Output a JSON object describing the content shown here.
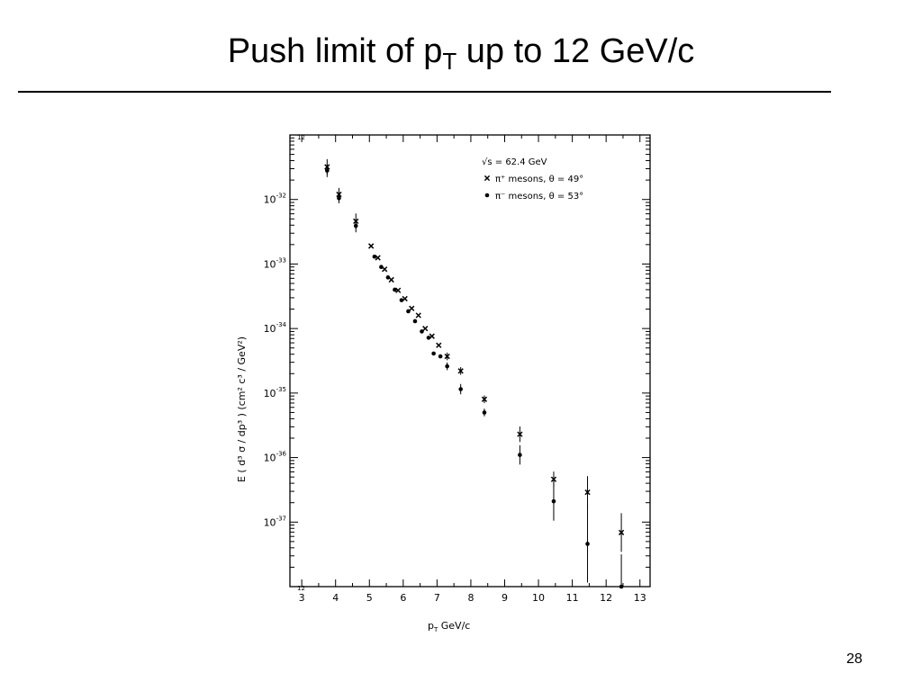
{
  "slide": {
    "title_main": "Push limit of p",
    "title_sub": "T",
    "title_rest": " up to 12 GeV/c",
    "page_number": "28"
  },
  "chart_data": {
    "type": "scatter",
    "xlabel_main": "p",
    "xlabel_sub": "T",
    "xlabel_rest": "  GeV/c",
    "ylabel": "E ( d³ σ / dp³ ) (cm² c³ / GeV²)",
    "xlim": [
      2.65,
      13.3
    ],
    "y_log_scale": true,
    "ylim": [
      1e-38,
      1e-31
    ],
    "x_ticks": [
      3,
      4,
      5,
      6,
      7,
      8,
      9,
      10,
      11,
      12,
      13
    ],
    "y_ticks": [
      {
        "value": 1e-32,
        "mantissa": "10",
        "exponent": "-32"
      },
      {
        "value": 1e-33,
        "mantissa": "10",
        "exponent": "-33"
      },
      {
        "value": 1e-34,
        "mantissa": "10",
        "exponent": "-34"
      },
      {
        "value": 1e-35,
        "mantissa": "10",
        "exponent": "-35"
      },
      {
        "value": 1e-36,
        "mantissa": "10",
        "exponent": "-36"
      },
      {
        "value": 1e-37,
        "mantissa": "10",
        "exponent": "-37"
      }
    ],
    "corner_label_top": "12",
    "corner_label_bottom": "12",
    "legend": {
      "position": "top-right",
      "sqrt_s_label": "√s = 62.4 GeV",
      "entries": [
        {
          "symbol": "cross",
          "label": "π⁺ mesons, θ = 49°"
        },
        {
          "symbol": "dot",
          "label": "π⁻ mesons, θ = 53°"
        }
      ]
    },
    "series": [
      {
        "name": "π⁺ mesons, θ = 49°",
        "marker": "cross",
        "points": [
          {
            "x": 3.75,
            "y": 3.2e-32,
            "err": 0.12
          },
          {
            "x": 4.1,
            "y": 1.2e-32,
            "err": 0.1
          },
          {
            "x": 4.6,
            "y": 4.6e-33,
            "err": 0.12
          },
          {
            "x": 5.05,
            "y": 1.9e-33,
            "err": 0
          },
          {
            "x": 5.25,
            "y": 1.25e-33,
            "err": 0
          },
          {
            "x": 5.45,
            "y": 8.3e-34,
            "err": 0
          },
          {
            "x": 5.65,
            "y": 5.7e-34,
            "err": 0
          },
          {
            "x": 5.85,
            "y": 3.9e-34,
            "err": 0
          },
          {
            "x": 6.05,
            "y": 2.9e-34,
            "err": 0
          },
          {
            "x": 6.25,
            "y": 2.05e-34,
            "err": 0
          },
          {
            "x": 6.45,
            "y": 1.6e-34,
            "err": 0
          },
          {
            "x": 6.65,
            "y": 1e-34,
            "err": 0
          },
          {
            "x": 6.85,
            "y": 7.6e-35,
            "err": 0
          },
          {
            "x": 7.05,
            "y": 5.5e-35,
            "err": 0
          },
          {
            "x": 7.3,
            "y": 3.7e-35,
            "err": 0.06
          },
          {
            "x": 7.7,
            "y": 2.2e-35,
            "err": 0.06
          },
          {
            "x": 8.4,
            "y": 8e-36,
            "err": 0.06
          },
          {
            "x": 9.45,
            "y": 2.3e-36,
            "err": 0.12
          },
          {
            "x": 10.45,
            "y": 4.6e-37,
            "err": 0.12
          },
          {
            "x": 11.45,
            "y": 2.9e-37,
            "err": 0.25
          },
          {
            "x": 12.45,
            "y": 6.9e-38,
            "err": 0.3
          }
        ]
      },
      {
        "name": "π⁻ mesons, θ = 53°",
        "marker": "dot",
        "points": [
          {
            "x": 3.75,
            "y": 2.8e-32,
            "err": 0.1
          },
          {
            "x": 4.1,
            "y": 1.05e-32,
            "err": 0.08
          },
          {
            "x": 4.6,
            "y": 3.9e-33,
            "err": 0.1
          },
          {
            "x": 5.15,
            "y": 1.3e-33,
            "err": 0
          },
          {
            "x": 5.35,
            "y": 9e-34,
            "err": 0
          },
          {
            "x": 5.55,
            "y": 6.2e-34,
            "err": 0
          },
          {
            "x": 5.75,
            "y": 4e-34,
            "err": 0
          },
          {
            "x": 5.95,
            "y": 2.75e-34,
            "err": 0
          },
          {
            "x": 6.15,
            "y": 1.85e-34,
            "err": 0
          },
          {
            "x": 6.35,
            "y": 1.3e-34,
            "err": 0
          },
          {
            "x": 6.55,
            "y": 9e-35,
            "err": 0
          },
          {
            "x": 6.75,
            "y": 7.2e-35,
            "err": 0
          },
          {
            "x": 6.9,
            "y": 4.1e-35,
            "err": 0
          },
          {
            "x": 7.1,
            "y": 3.7e-35,
            "err": 0
          },
          {
            "x": 7.3,
            "y": 2.6e-35,
            "err": 0.06
          },
          {
            "x": 7.7,
            "y": 1.15e-35,
            "err": 0.08
          },
          {
            "x": 8.4,
            "y": 5e-36,
            "err": 0.06
          },
          {
            "x": 9.45,
            "y": 1.1e-36,
            "err": 0.15
          },
          {
            "x": 10.45,
            "y": 2.1e-37,
            "err": 0.3
          },
          {
            "x": 11.45,
            "y": 4.6e-38,
            "err": 0.6
          },
          {
            "x": 12.45,
            "y": 1e-38,
            "err": 0.5
          }
        ]
      }
    ]
  }
}
